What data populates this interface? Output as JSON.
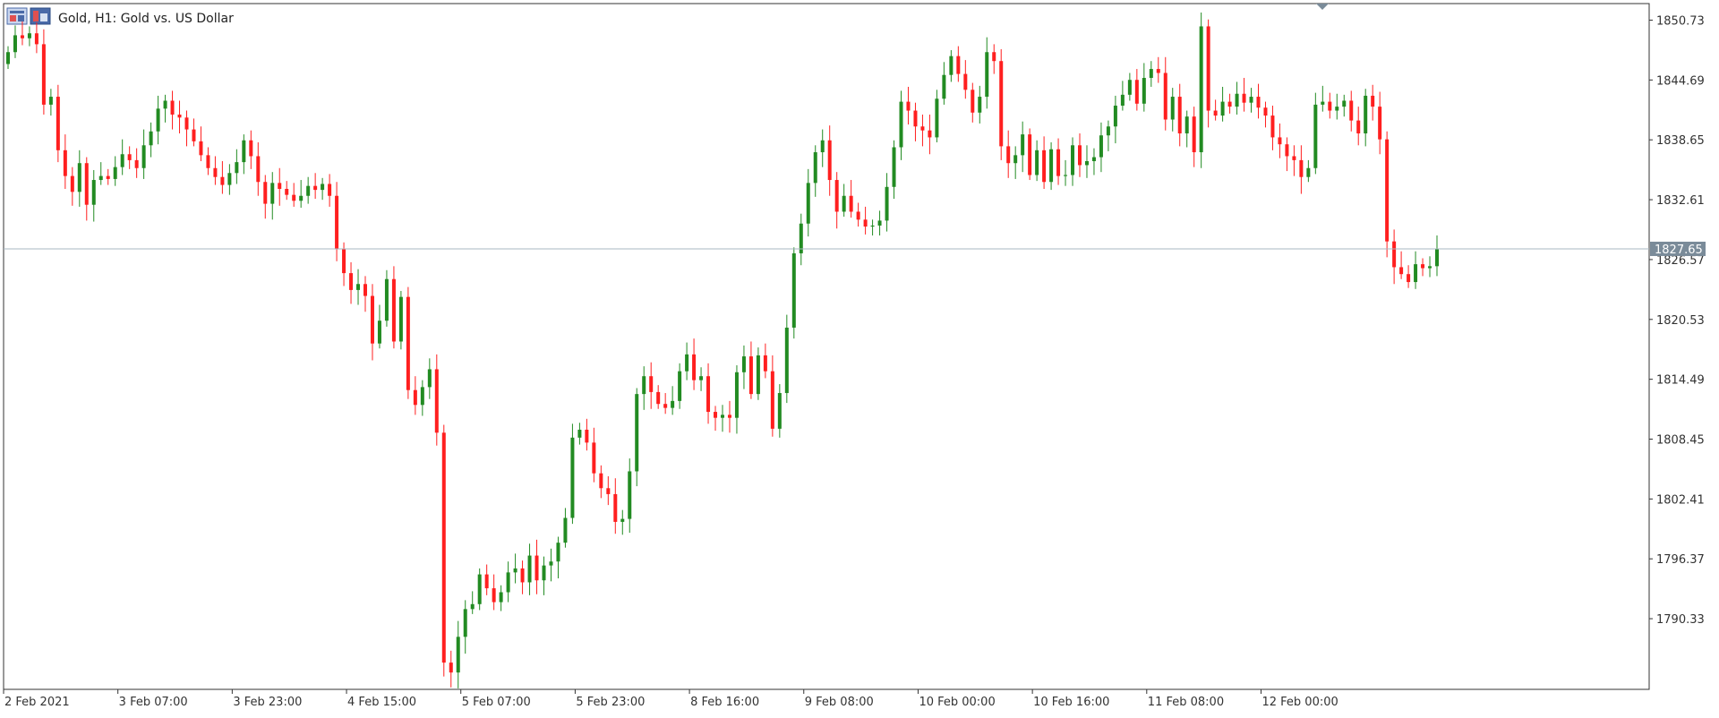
{
  "header": {
    "title": "Gold, H1:  Gold vs. US Dollar",
    "icon": "chart-window-icon"
  },
  "colors": {
    "bull": "#228b22",
    "bear": "#ff1f1f",
    "price_line": "#a9b7c2",
    "price_label_bg": "#7a8b99",
    "axis": "#333333",
    "background": "#ffffff"
  },
  "chart_data": {
    "type": "candlestick",
    "title": "Gold, H1:  Gold vs. US Dollar",
    "ylim": [
      1783.2,
      1852.4
    ],
    "y_ticks": [
      "1850.73",
      "1844.69",
      "1838.65",
      "1832.61",
      "1826.57",
      "1820.53",
      "1814.49",
      "1808.45",
      "1802.41",
      "1796.37",
      "1790.33"
    ],
    "x_ticks": [
      "2 Feb 2021",
      "3 Feb 07:00",
      "3 Feb 23:00",
      "4 Feb 15:00",
      "5 Feb 07:00",
      "5 Feb 23:00",
      "8 Feb 16:00",
      "9 Feb 08:00",
      "10 Feb 00:00",
      "10 Feb 16:00",
      "11 Feb 08:00",
      "12 Feb 00:00"
    ],
    "current_price": 1827.65,
    "current_price_label": "1827.65",
    "candles_per_tick": 16,
    "closes": [
      1847.5,
      1849.2,
      1848.9,
      1849.4,
      1848.3,
      1842.2,
      1843.0,
      1837.6,
      1835.0,
      1833.4,
      1836.3,
      1832.1,
      1834.6,
      1835.0,
      1834.7,
      1835.9,
      1837.2,
      1836.6,
      1835.8,
      1838.1,
      1839.5,
      1841.8,
      1842.6,
      1841.2,
      1840.9,
      1839.7,
      1838.5,
      1837.1,
      1835.8,
      1834.9,
      1834.1,
      1835.3,
      1836.4,
      1838.6,
      1837.0,
      1834.4,
      1832.2,
      1834.3,
      1833.7,
      1833.1,
      1832.5,
      1833.0,
      1834.0,
      1833.6,
      1834.2,
      1833.0,
      1827.6,
      1825.2,
      1823.5,
      1824.1,
      1822.9,
      1818.1,
      1820.4,
      1824.6,
      1818.3,
      1822.8,
      1813.4,
      1811.9,
      1813.7,
      1815.5,
      1809.1,
      1785.9,
      1784.9,
      1788.5,
      1791.3,
      1791.8,
      1794.8,
      1793.4,
      1792.0,
      1793.0,
      1795.0,
      1795.4,
      1794.0,
      1796.7,
      1794.2,
      1795.7,
      1796.1,
      1798.0,
      1800.5,
      1808.6,
      1809.4,
      1808.1,
      1805.0,
      1803.5,
      1802.9,
      1800.1,
      1800.4,
      1805.2,
      1813.0,
      1814.8,
      1813.2,
      1812.0,
      1811.6,
      1812.3,
      1815.3,
      1817.0,
      1814.4,
      1814.8,
      1811.2,
      1810.6,
      1810.9,
      1810.6,
      1815.2,
      1816.8,
      1813.0,
      1816.9,
      1815.3,
      1809.5,
      1813.1,
      1819.7,
      1827.2,
      1830.2,
      1834.3,
      1837.4,
      1838.6,
      1834.6,
      1831.4,
      1833.0,
      1831.4,
      1830.6,
      1829.9,
      1830.0,
      1830.5,
      1833.9,
      1837.9,
      1842.5,
      1841.6,
      1840.0,
      1839.6,
      1838.9,
      1842.8,
      1845.2,
      1847.1,
      1845.3,
      1843.7,
      1841.4,
      1843.0,
      1847.5,
      1846.6,
      1838.0,
      1836.3,
      1837.1,
      1839.2,
      1835.1,
      1837.6,
      1834.4,
      1837.7,
      1835.0,
      1835.1,
      1838.1,
      1836.1,
      1836.5,
      1836.9,
      1839.1,
      1840.0,
      1842.1,
      1843.2,
      1844.7,
      1842.3,
      1844.9,
      1845.8,
      1845.4,
      1840.7,
      1843.0,
      1839.3,
      1841.0,
      1837.4,
      1850.1,
      1841.6,
      1841.1,
      1842.5,
      1842.0,
      1843.3,
      1842.4,
      1843.0,
      1841.9,
      1841.1,
      1838.9,
      1838.2,
      1837.0,
      1836.6,
      1834.9,
      1835.8,
      1842.2,
      1842.5,
      1841.6,
      1842.0,
      1842.6,
      1840.6,
      1839.3,
      1843.1,
      1842.0,
      1838.7,
      1828.4,
      1825.8,
      1825.1,
      1824.3,
      1826.1,
      1825.7,
      1825.9,
      1827.6
    ]
  }
}
